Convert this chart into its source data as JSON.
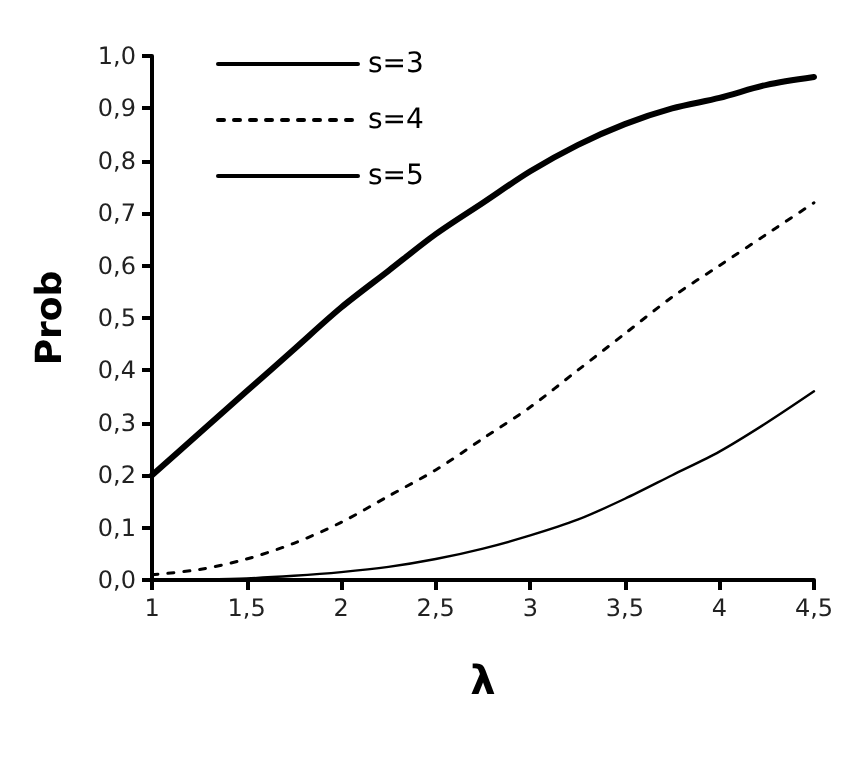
{
  "chart_data": {
    "type": "line",
    "xlabel": "λ",
    "ylabel": "Prob",
    "x": [
      1,
      1.25,
      1.5,
      1.75,
      2,
      2.25,
      2.5,
      2.75,
      3,
      3.25,
      3.5,
      3.75,
      4,
      4.25,
      4.5
    ],
    "xlim": [
      1,
      4.5
    ],
    "xticks": [
      1,
      {
        "value": 1.5,
        "label": "1,5"
      },
      2,
      {
        "value": 2.5,
        "label": "2,5"
      },
      3,
      {
        "value": 3.5,
        "label": "3,5"
      },
      4,
      {
        "value": 4.5,
        "label": "4,5"
      }
    ],
    "ylim": [
      0,
      1
    ],
    "yticks": [
      {
        "value": 0,
        "label": "0,0"
      },
      {
        "value": 0.1,
        "label": "0,1"
      },
      {
        "value": 0.2,
        "label": "0,2"
      },
      {
        "value": 0.3,
        "label": "0,3"
      },
      {
        "value": 0.4,
        "label": "0,4"
      },
      {
        "value": 0.5,
        "label": "0,5"
      },
      {
        "value": 0.6,
        "label": "0,6"
      },
      {
        "value": 0.7,
        "label": "0,7"
      },
      {
        "value": 0.8,
        "label": "0,8"
      },
      {
        "value": 0.9,
        "label": "0,9"
      },
      {
        "value": 1,
        "label": "1,0"
      }
    ],
    "grid": false,
    "legend": "top left",
    "marker": "none",
    "series": [
      {
        "name": "s=3",
        "color": "#000000",
        "line_style": "solid",
        "values": [
          0.2,
          0.28,
          0.36,
          0.44,
          0.52,
          0.59,
          0.66,
          0.72,
          0.78,
          0.83,
          0.87,
          0.9,
          0.92,
          0.945,
          0.96
        ]
      },
      {
        "name": "s=4",
        "color": "#000000",
        "line_style": "dotted",
        "values": [
          0.01,
          0.02,
          0.04,
          0.07,
          0.11,
          0.16,
          0.21,
          0.27,
          0.33,
          0.4,
          0.47,
          0.54,
          0.6,
          0.66,
          0.72
        ]
      },
      {
        "name": "s=5",
        "color": "#000000",
        "line_style": "solid",
        "values": [
          0,
          0.001,
          0.003,
          0.008,
          0.015,
          0.025,
          0.04,
          0.06,
          0.085,
          0.115,
          0.155,
          0.2,
          0.245,
          0.3,
          0.36
        ]
      }
    ]
  }
}
